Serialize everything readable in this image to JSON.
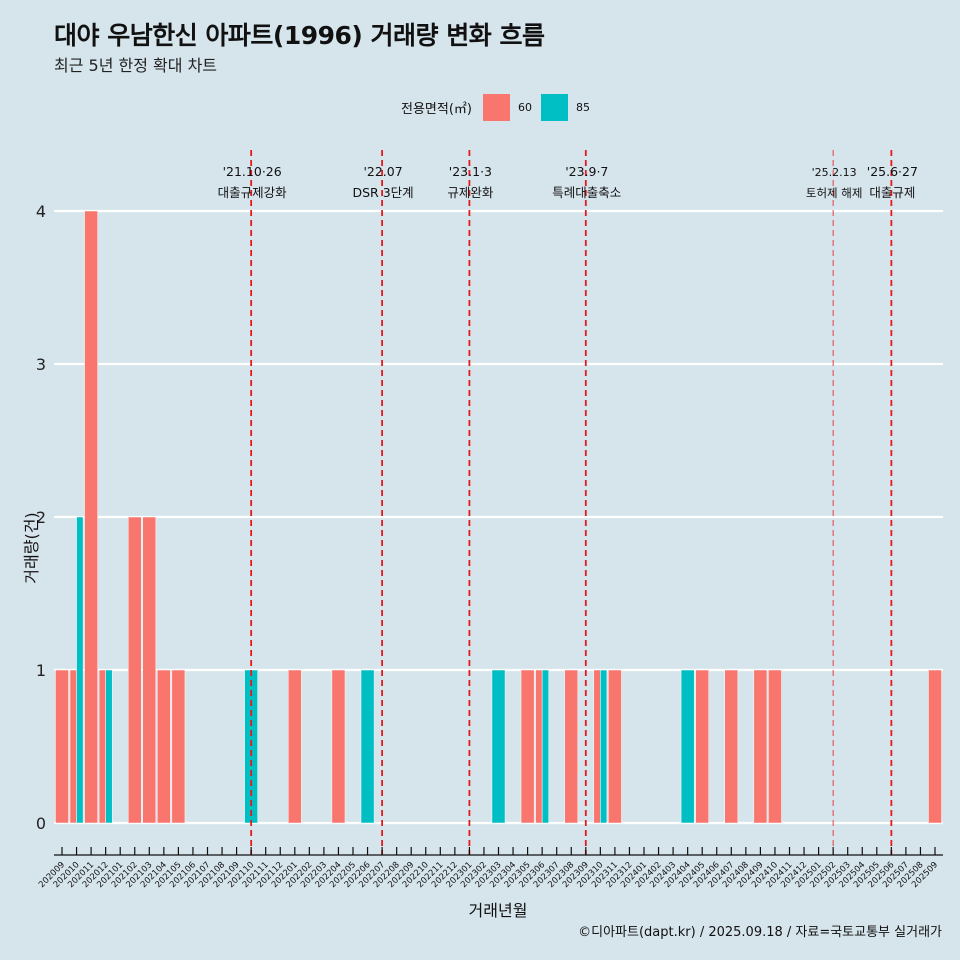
{
  "header": {
    "title": "대야 우남한신 아파트(1996) 거래량 변화 흐름",
    "subtitle": "최근 5년 한정 확대 차트"
  },
  "legend": {
    "title": "전용면적(㎡)",
    "items": [
      {
        "label": "60",
        "color": "#F8766D"
      },
      {
        "label": "85",
        "color": "#00BFC4"
      }
    ]
  },
  "caption": "©디아파트(dapt.kr) / 2025.09.18 / 자료=국토교통부 실거래가",
  "chart_data": {
    "type": "bar",
    "title": "대야 우남한신 아파트(1996) 거래량 변화 흐름",
    "subtitle": "최근 5년 한정 확대 차트",
    "xlabel": "거래년월",
    "ylabel": "거래량(건)",
    "ylim": [
      0,
      4
    ],
    "yticks": [
      "0",
      "1",
      "2",
      "3",
      "4"
    ],
    "grid": "horizontal",
    "legend_position": "top",
    "bar_mode": "dodge",
    "categories": [
      "202009",
      "202010",
      "202011",
      "202012",
      "202101",
      "202102",
      "202103",
      "202104",
      "202105",
      "202106",
      "202107",
      "202108",
      "202109",
      "202110",
      "202111",
      "202112",
      "202201",
      "202202",
      "202203",
      "202204",
      "202205",
      "202206",
      "202207",
      "202208",
      "202209",
      "202210",
      "202211",
      "202212",
      "202301",
      "202302",
      "202303",
      "202304",
      "202305",
      "202306",
      "202307",
      "202308",
      "202309",
      "202310",
      "202311",
      "202312",
      "202401",
      "202402",
      "202403",
      "202404",
      "202405",
      "202406",
      "202407",
      "202408",
      "202409",
      "202410",
      "202411",
      "202412",
      "202501",
      "202502",
      "202503",
      "202504",
      "202505",
      "202506",
      "202507",
      "202508",
      "202509"
    ],
    "series": [
      {
        "name": "60",
        "color": "#F8766D",
        "values": [
          1,
          1,
          4,
          1,
          0,
          2,
          2,
          1,
          1,
          0,
          0,
          0,
          0,
          0,
          0,
          0,
          1,
          0,
          0,
          1,
          0,
          0,
          0,
          0,
          0,
          0,
          0,
          0,
          0,
          0,
          0,
          0,
          1,
          1,
          0,
          1,
          0,
          1,
          1,
          0,
          0,
          0,
          0,
          0,
          1,
          0,
          1,
          0,
          1,
          1,
          0,
          0,
          0,
          0,
          0,
          0,
          0,
          0,
          0,
          0,
          1
        ]
      },
      {
        "name": "85",
        "color": "#00BFC4",
        "values": [
          0,
          2,
          0,
          1,
          0,
          0,
          0,
          0,
          0,
          0,
          0,
          0,
          0,
          1,
          0,
          0,
          0,
          0,
          0,
          0,
          0,
          1,
          0,
          0,
          0,
          0,
          0,
          0,
          0,
          0,
          1,
          0,
          0,
          1,
          0,
          0,
          0,
          1,
          0,
          0,
          0,
          0,
          0,
          1,
          0,
          0,
          0,
          0,
          0,
          0,
          0,
          0,
          0,
          0,
          0,
          0,
          0,
          0,
          0,
          0,
          0
        ]
      }
    ],
    "annotations": [
      {
        "month": "202110",
        "date": "'21.10·26",
        "label": "대출규제강화",
        "style": "bold"
      },
      {
        "month": "202207",
        "date": "'22.07",
        "label": "DSR 3단계",
        "style": "bold"
      },
      {
        "month": "202301",
        "date": "'23.1·3",
        "label": "규제완화",
        "style": "bold"
      },
      {
        "month": "202309",
        "date": "'23.9·7",
        "label": "특례대출축소",
        "style": "bold"
      },
      {
        "month": "202502",
        "date": "'25.2.13",
        "label": "토허제 해제",
        "style": "light"
      },
      {
        "month": "202506",
        "date": "'25.6·27",
        "label": "대출규제",
        "style": "bold"
      }
    ],
    "annotation_color": "#E41A1C"
  }
}
